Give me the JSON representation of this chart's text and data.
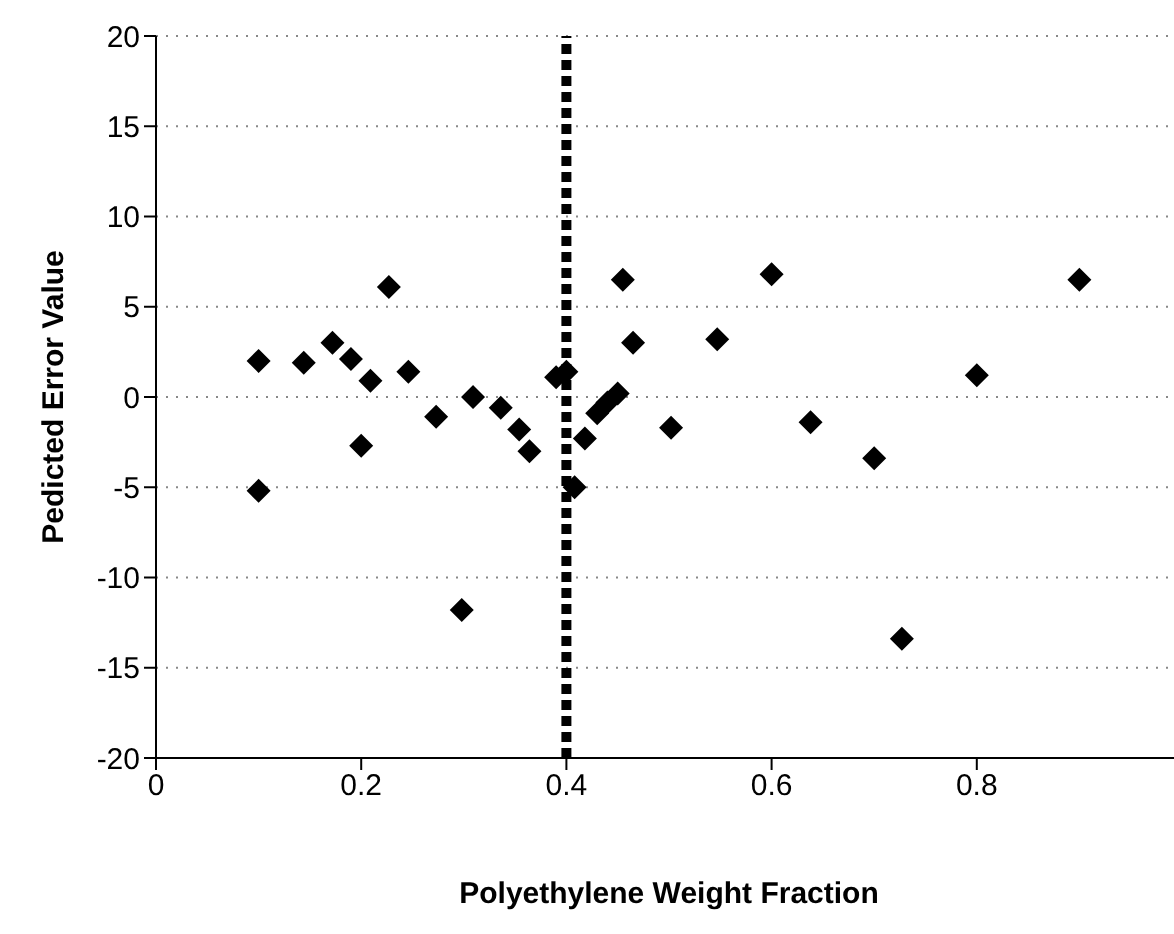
{
  "chart_data": {
    "type": "scatter",
    "xlabel": "Polyethylene Weight Fraction",
    "ylabel": "Pedicted Error Value",
    "x": [
      0.1,
      0.1,
      0.144,
      0.172,
      0.19,
      0.209,
      0.2,
      0.227,
      0.246,
      0.273,
      0.309,
      0.298,
      0.336,
      0.354,
      0.364,
      0.39,
      0.4,
      0.408,
      0.418,
      0.43,
      0.44,
      0.45,
      0.455,
      0.465,
      0.502,
      0.547,
      0.6,
      0.638,
      0.7,
      0.727,
      0.8,
      0.9
    ],
    "series": [
      {
        "color": "#000000",
        "values": [
          2.0,
          -5.2,
          1.9,
          3.0,
          2.1,
          0.9,
          -2.7,
          6.1,
          1.4,
          -1.1,
          0.0,
          -11.8,
          -0.6,
          -1.8,
          -3.0,
          1.1,
          1.4,
          -5.0,
          -2.3,
          -0.9,
          -0.3,
          0.2,
          6.5,
          3.0,
          -1.7,
          3.2,
          6.8,
          -1.4,
          -3.4,
          -13.4,
          1.2,
          6.5
        ]
      }
    ],
    "xlim": [
      0,
      1
    ],
    "xticks": [
      0,
      0.2,
      0.4,
      0.6,
      0.8
    ],
    "ylim": [
      -20,
      20
    ],
    "yticks": [
      -20,
      -15,
      -10,
      -5,
      0,
      5,
      10,
      15,
      20
    ],
    "grid": "y",
    "marker": "diamond",
    "legend": false,
    "ref_lines": [
      {
        "axis": "x",
        "value": 0.4,
        "color": "#000000",
        "line_style": "dashed"
      }
    ]
  }
}
